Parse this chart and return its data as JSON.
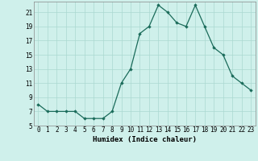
{
  "x": [
    0,
    1,
    2,
    3,
    4,
    5,
    6,
    7,
    8,
    9,
    10,
    11,
    12,
    13,
    14,
    15,
    16,
    17,
    18,
    19,
    20,
    21,
    22,
    23
  ],
  "y": [
    8,
    7,
    7,
    7,
    7,
    6,
    6,
    6,
    7,
    11,
    13,
    18,
    19,
    22,
    21,
    19.5,
    19,
    22,
    19,
    16,
    15,
    12,
    11,
    10
  ],
  "line_color": "#1a6b5a",
  "marker": "D",
  "marker_size": 1.8,
  "bg_color": "#cff0eb",
  "grid_color": "#aad8d0",
  "xlabel": "Humidex (Indice chaleur)",
  "xlim": [
    -0.5,
    23.5
  ],
  "ylim": [
    5,
    22.5
  ],
  "yticks": [
    5,
    7,
    9,
    11,
    13,
    15,
    17,
    19,
    21
  ],
  "xticks": [
    0,
    1,
    2,
    3,
    4,
    5,
    6,
    7,
    8,
    9,
    10,
    11,
    12,
    13,
    14,
    15,
    16,
    17,
    18,
    19,
    20,
    21,
    22,
    23
  ],
  "tick_fontsize": 5.5,
  "label_fontsize": 6.5
}
